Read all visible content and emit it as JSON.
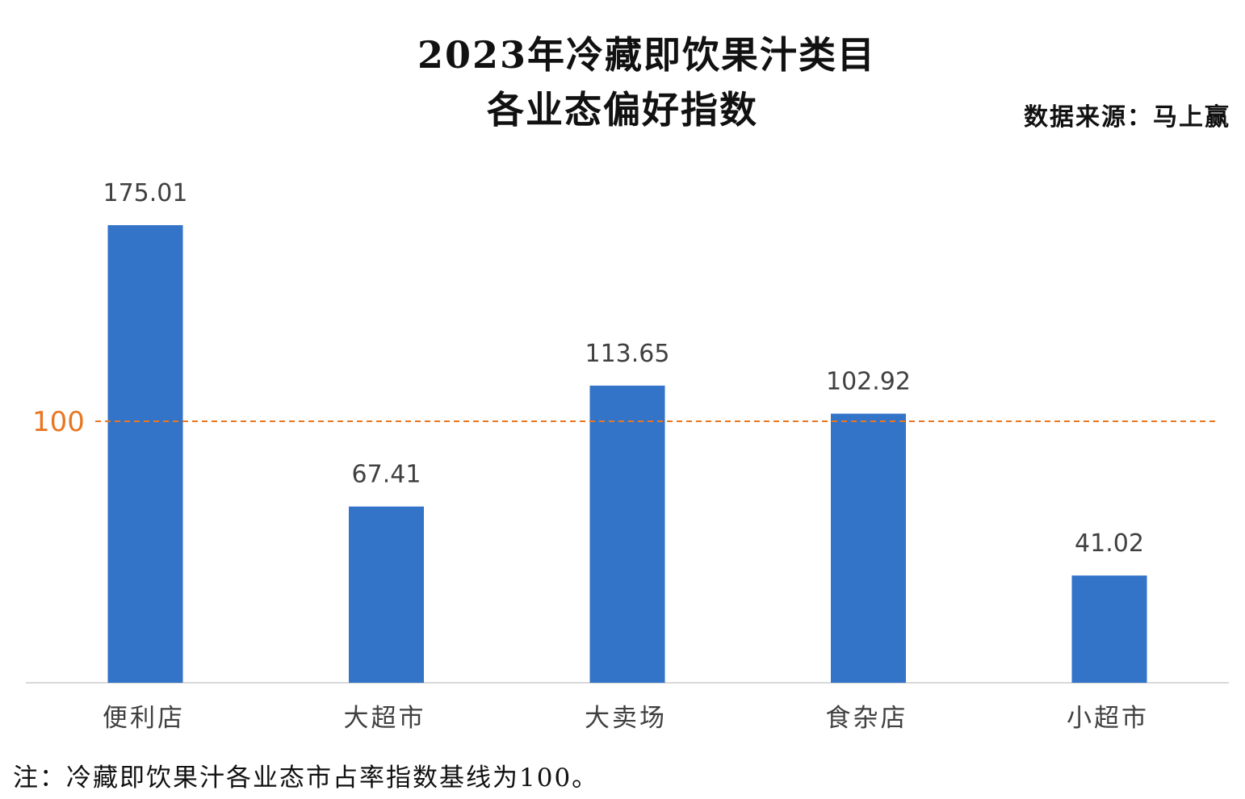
{
  "chart_data": {
    "type": "bar",
    "title": [
      "2023年冷藏即饮果汁类目",
      "各业态偏好指数"
    ],
    "source": "数据来源：马上赢",
    "note": "注：冷藏即饮果汁各业态市占率指数基线为100。",
    "categories": [
      "便利店",
      "大超市",
      "大卖场",
      "食杂店",
      "小超市"
    ],
    "values": [
      175.01,
      67.41,
      113.65,
      102.92,
      41.02
    ],
    "value_labels": [
      "175.01",
      "67.41",
      "113.65",
      "102.92",
      "41.02"
    ],
    "reference_line": {
      "value": 100,
      "label": "100",
      "color": "#e87722",
      "style": "dashed"
    },
    "ylim": [
      0,
      175.01
    ],
    "xlabel": "",
    "ylabel": "",
    "bar_color": "#3373c8",
    "grid": false,
    "legend": "none"
  }
}
